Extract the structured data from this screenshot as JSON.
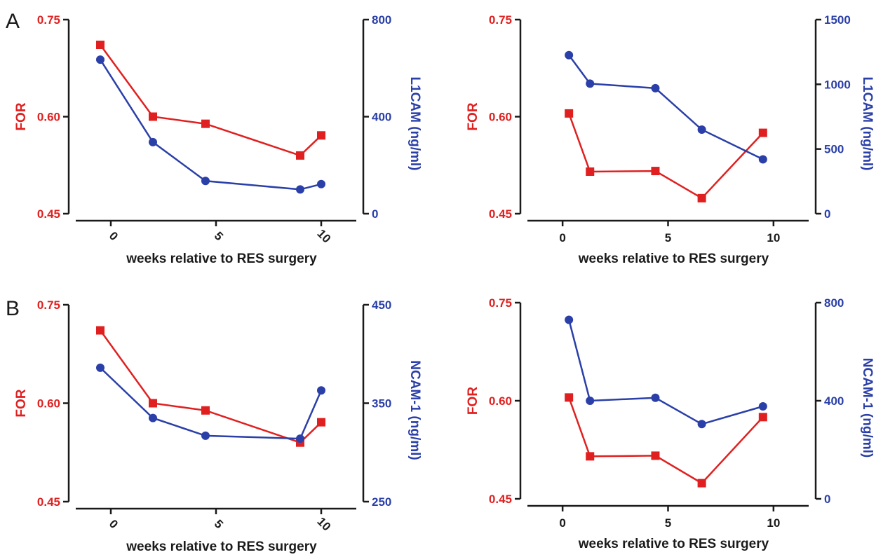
{
  "panel_labels": [
    "A",
    "B"
  ],
  "colors": {
    "left_axis": "#e02020",
    "right_axis": "#2a3fa8",
    "axis": "#1a1a1a"
  },
  "chart_data": [
    {
      "type": "line",
      "panel": "A",
      "position": "top-left",
      "xlabel": "weeks relative to RES surgery",
      "ylabel_left": "FOR",
      "ylabel_right": "L1CAM (ng/ml)",
      "xlim": [
        -2,
        12
      ],
      "xticks": [
        0,
        5,
        10
      ],
      "xtick_labels": [
        "0",
        "5",
        "10"
      ],
      "xtick_rotated": true,
      "ylim_left": [
        0.45,
        0.75
      ],
      "yticks_left": [
        "0.45",
        "0.60",
        "0.75"
      ],
      "ylim_right": [
        0,
        800
      ],
      "yticks_right": [
        "0",
        "400",
        "800"
      ],
      "series": [
        {
          "axis": "left",
          "marker": "square",
          "x": [
            -0.5,
            2,
            4.5,
            9,
            10
          ],
          "y": [
            0.711,
            0.6,
            0.589,
            0.54,
            0.571
          ]
        },
        {
          "axis": "right",
          "marker": "circle",
          "x": [
            -0.5,
            2,
            4.5,
            9,
            10
          ],
          "y": [
            635,
            295,
            135,
            100,
            122
          ]
        }
      ]
    },
    {
      "type": "line",
      "position": "top-right",
      "xlabel": "weeks relative to RES surgery",
      "ylabel_left": "FOR",
      "ylabel_right": "L1CAM (ng/ml)",
      "xlim": [
        -2,
        12
      ],
      "xticks": [
        0,
        5,
        10
      ],
      "xtick_labels": [
        "0",
        "5",
        "10"
      ],
      "xtick_rotated": false,
      "ylim_left": [
        0.45,
        0.75
      ],
      "yticks_left": [
        "0.45",
        "0.60",
        "0.75"
      ],
      "ylim_right": [
        0,
        1500
      ],
      "yticks_right": [
        "0",
        "500",
        "1000",
        "1500"
      ],
      "series": [
        {
          "axis": "left",
          "marker": "square",
          "x": [
            0.3,
            1.3,
            4.4,
            6.6,
            9.5
          ],
          "y": [
            0.605,
            0.515,
            0.516,
            0.474,
            0.575
          ]
        },
        {
          "axis": "right",
          "marker": "circle",
          "x": [
            0.3,
            1.3,
            4.4,
            6.6,
            9.5
          ],
          "y": [
            1225,
            1005,
            970,
            650,
            420
          ]
        }
      ]
    },
    {
      "type": "line",
      "panel": "B",
      "position": "bottom-left",
      "xlabel": "weeks relative to RES surgery",
      "ylabel_left": "FOR",
      "ylabel_right": "NCAM-1 (ng/ml)",
      "xlim": [
        -2,
        12
      ],
      "xticks": [
        0,
        5,
        10
      ],
      "xtick_labels": [
        "0",
        "5",
        "10"
      ],
      "xtick_rotated": true,
      "ylim_left": [
        0.45,
        0.75
      ],
      "yticks_left": [
        "0.45",
        "0.60",
        "0.75"
      ],
      "ylim_right": [
        250,
        450
      ],
      "yticks_right": [
        "250",
        "350",
        "450"
      ],
      "series": [
        {
          "axis": "left",
          "marker": "square",
          "x": [
            -0.5,
            2,
            4.5,
            9,
            10
          ],
          "y": [
            0.711,
            0.6,
            0.589,
            0.54,
            0.571
          ]
        },
        {
          "axis": "right",
          "marker": "circle",
          "x": [
            -0.5,
            2,
            4.5,
            9,
            10
          ],
          "y": [
            386,
            335,
            317,
            314,
            363
          ]
        }
      ]
    },
    {
      "type": "line",
      "position": "bottom-right",
      "xlabel": "weeks relative to RES surgery",
      "ylabel_left": "FOR",
      "ylabel_right": "NCAM-1 (ng/ml)",
      "xlim": [
        -2,
        12
      ],
      "xticks": [
        0,
        5,
        10
      ],
      "xtick_labels": [
        "0",
        "5",
        "10"
      ],
      "xtick_rotated": false,
      "ylim_left": [
        0.45,
        0.75
      ],
      "yticks_left": [
        "0.45",
        "0.60",
        "0.75"
      ],
      "ylim_right": [
        0,
        800
      ],
      "yticks_right": [
        "0",
        "400",
        "800"
      ],
      "series": [
        {
          "axis": "left",
          "marker": "square",
          "x": [
            0.3,
            1.3,
            4.4,
            6.6,
            9.5
          ],
          "y": [
            0.605,
            0.515,
            0.516,
            0.474,
            0.575
          ]
        },
        {
          "axis": "right",
          "marker": "circle",
          "x": [
            0.3,
            1.3,
            4.4,
            6.6,
            9.5
          ],
          "y": [
            730,
            400,
            412,
            305,
            377
          ]
        }
      ]
    }
  ]
}
